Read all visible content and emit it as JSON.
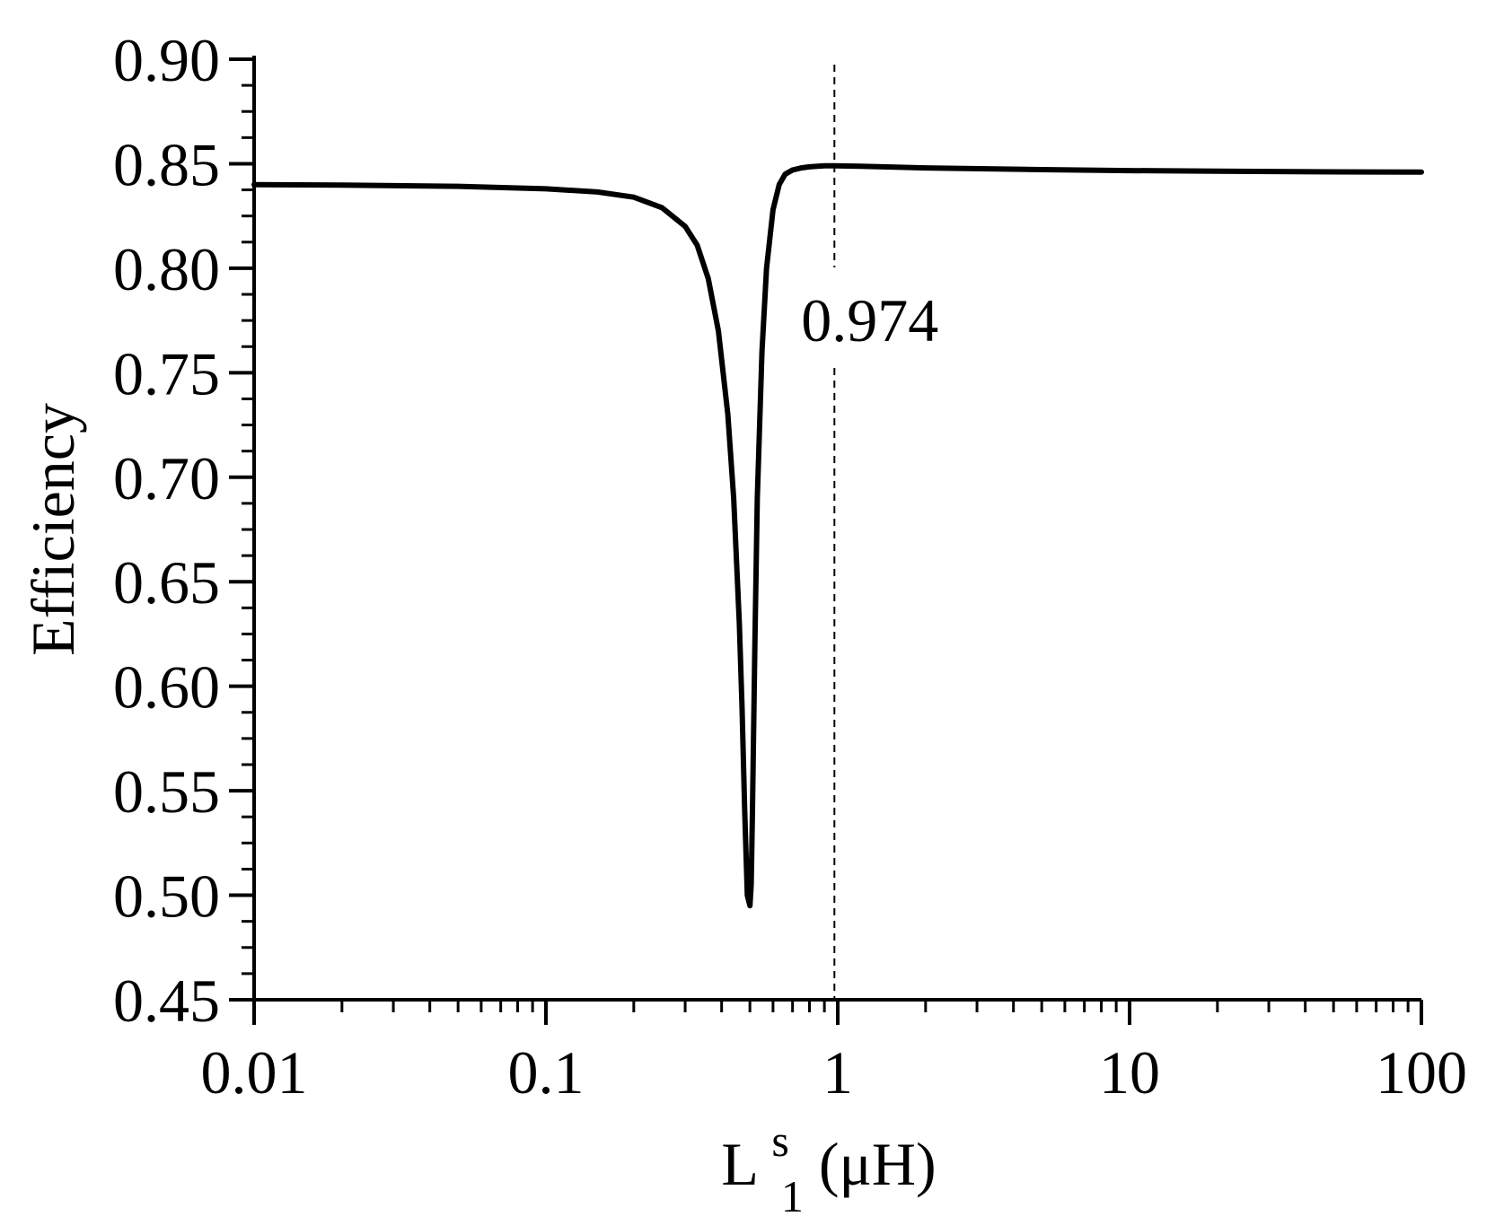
{
  "chart_data": {
    "type": "line",
    "x_scale": "log",
    "xlim": [
      0.01,
      100
    ],
    "ylim": [
      0.45,
      0.9
    ],
    "x_major_ticks": [
      0.01,
      0.1,
      1,
      10,
      100
    ],
    "x_tick_labels": [
      "0.01",
      "0.1",
      "1",
      "10",
      "100"
    ],
    "y_ticks": [
      0.45,
      0.5,
      0.55,
      0.6,
      0.65,
      0.7,
      0.75,
      0.8,
      0.85,
      0.9
    ],
    "y_tick_labels": [
      "0.45",
      "0.50",
      "0.55",
      "0.60",
      "0.65",
      "0.70",
      "0.75",
      "0.80",
      "0.85",
      "0.90"
    ],
    "xlabel": {
      "main": "L",
      "sup": "s",
      "sub": "1",
      "unit": " (μH)"
    },
    "ylabel": "Efficiency",
    "grid": false,
    "series": [
      {
        "x": [
          0.01,
          0.02,
          0.05,
          0.1,
          0.15,
          0.2,
          0.25,
          0.3,
          0.33,
          0.36,
          0.39,
          0.42,
          0.44,
          0.46,
          0.47,
          0.48,
          0.49,
          0.5,
          0.505,
          0.51,
          0.52,
          0.53,
          0.55,
          0.57,
          0.6,
          0.63,
          0.66,
          0.7,
          0.75,
          0.8,
          0.9,
          0.974,
          1.2,
          2,
          5,
          10,
          20,
          50,
          100
        ],
        "y": [
          0.84,
          0.8398,
          0.8392,
          0.838,
          0.8365,
          0.834,
          0.829,
          0.82,
          0.811,
          0.795,
          0.77,
          0.73,
          0.69,
          0.63,
          0.59,
          0.54,
          0.5,
          0.495,
          0.505,
          0.54,
          0.62,
          0.69,
          0.76,
          0.8,
          0.828,
          0.84,
          0.845,
          0.847,
          0.848,
          0.8485,
          0.849,
          0.849,
          0.8488,
          0.848,
          0.8472,
          0.8467,
          0.8464,
          0.8461,
          0.846
        ]
      }
    ],
    "reference_line": {
      "x": 0.974,
      "label": "0.974",
      "style": "dashed"
    }
  }
}
